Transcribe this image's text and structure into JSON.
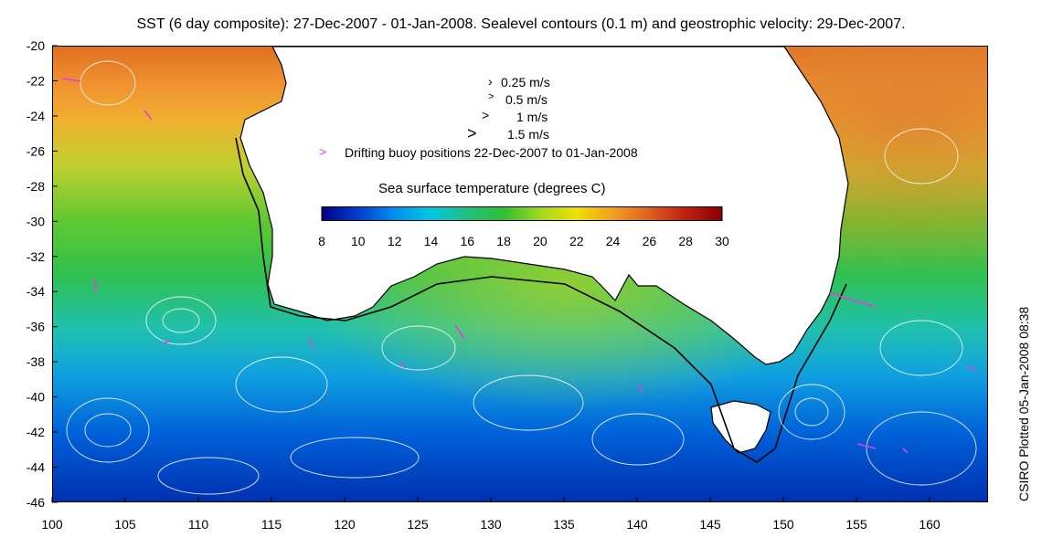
{
  "title": "SST (6 day composite): 27-Dec-2007 - 01-Jan-2008. Sealevel contours (0.1 m) and geostrophic velocity: 29-Dec-2007.",
  "axes": {
    "x_ticks": [
      "100",
      "105",
      "110",
      "115",
      "120",
      "125",
      "130",
      "135",
      "140",
      "145",
      "150",
      "155",
      "160"
    ],
    "y_ticks": [
      "-20",
      "-22",
      "-24",
      "-26",
      "-28",
      "-30",
      "-32",
      "-34",
      "-36",
      "-38",
      "-40",
      "-42",
      "-44",
      "-46"
    ],
    "lon_range": [
      100,
      164
    ],
    "lat_range": [
      -46,
      -20
    ]
  },
  "legend": {
    "velocity": [
      {
        "label": "0.25 m/s"
      },
      {
        "label": "0.5 m/s"
      },
      {
        "label": "1 m/s"
      },
      {
        "label": "1.5 m/s"
      }
    ],
    "buoy": {
      "marker": ">",
      "label": "Drifting buoy positions 22-Dec-2007 to 01-Jan-2008",
      "color": "#e040e0"
    }
  },
  "colorbar": {
    "title": "Sea surface temperature (degrees C)",
    "ticks": [
      "8",
      "10",
      "12",
      "14",
      "16",
      "18",
      "20",
      "22",
      "24",
      "26",
      "28",
      "30"
    ],
    "range": [
      8,
      30
    ],
    "colors": [
      "#00008b",
      "#0040d0",
      "#0090f0",
      "#00c8e0",
      "#20c080",
      "#30c030",
      "#a0d820",
      "#f0e000",
      "#f0a020",
      "#e06020",
      "#c02010",
      "#8b0000"
    ]
  },
  "credit": "CSIRO Plotted 05-Jan-2008 08:38",
  "map_colors": {
    "land": "#ffffff",
    "coastline": "#000000",
    "contour": "#ffffff",
    "buoy": "#e040e0"
  }
}
